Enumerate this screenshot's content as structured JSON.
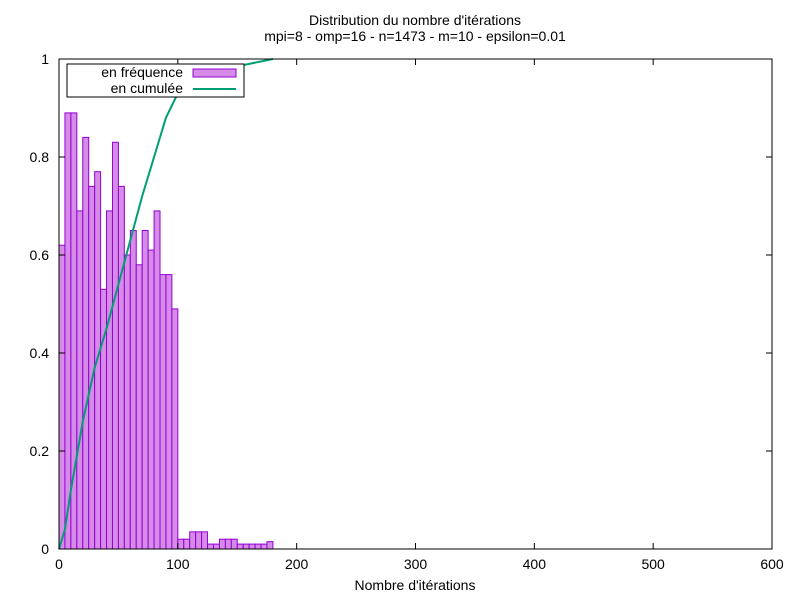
{
  "chart_data": {
    "type": "bar",
    "title": "Distribution du nombre d'itérations",
    "subtitle": "mpi=8 - omp=16 - n=1473 - m=10 - epsilon=0.01",
    "xlabel": "Nombre d'itérations",
    "ylabel": "",
    "xlim": [
      0,
      600
    ],
    "ylim": [
      0,
      1
    ],
    "xticks": [
      "0",
      "100",
      "200",
      "300",
      "400",
      "500",
      "600"
    ],
    "yticks": [
      "0",
      "0.2",
      "0.4",
      "0.6",
      "0.8",
      "1"
    ],
    "grid": false,
    "legend_position": "top-left",
    "bin_width": 5,
    "series": [
      {
        "name": "en fréquence",
        "kind": "histogram",
        "color": "#d68be9",
        "edge_color": "#9400d3",
        "bins": [
          {
            "x": 0,
            "y": 0.62
          },
          {
            "x": 5,
            "y": 0.89
          },
          {
            "x": 10,
            "y": 0.89
          },
          {
            "x": 15,
            "y": 0.69
          },
          {
            "x": 20,
            "y": 0.84
          },
          {
            "x": 25,
            "y": 0.74
          },
          {
            "x": 30,
            "y": 0.77
          },
          {
            "x": 35,
            "y": 0.53
          },
          {
            "x": 40,
            "y": 0.69
          },
          {
            "x": 45,
            "y": 0.83
          },
          {
            "x": 50,
            "y": 0.74
          },
          {
            "x": 55,
            "y": 0.6
          },
          {
            "x": 60,
            "y": 0.65
          },
          {
            "x": 65,
            "y": 0.58
          },
          {
            "x": 70,
            "y": 0.65
          },
          {
            "x": 75,
            "y": 0.61
          },
          {
            "x": 80,
            "y": 0.69
          },
          {
            "x": 85,
            "y": 0.56
          },
          {
            "x": 90,
            "y": 0.56
          },
          {
            "x": 95,
            "y": 0.49
          },
          {
            "x": 100,
            "y": 0.02
          },
          {
            "x": 105,
            "y": 0.02
          },
          {
            "x": 110,
            "y": 0.035
          },
          {
            "x": 115,
            "y": 0.035
          },
          {
            "x": 120,
            "y": 0.035
          },
          {
            "x": 125,
            "y": 0.01
          },
          {
            "x": 130,
            "y": 0.01
          },
          {
            "x": 135,
            "y": 0.02
          },
          {
            "x": 140,
            "y": 0.02
          },
          {
            "x": 145,
            "y": 0.02
          },
          {
            "x": 150,
            "y": 0.01
          },
          {
            "x": 155,
            "y": 0.01
          },
          {
            "x": 160,
            "y": 0.01
          },
          {
            "x": 165,
            "y": 0.01
          },
          {
            "x": 170,
            "y": 0.01
          },
          {
            "x": 175,
            "y": 0.015
          }
        ]
      },
      {
        "name": "en cumulée",
        "kind": "line",
        "color": "#009e73",
        "x": [
          0,
          5,
          10,
          20,
          30,
          40,
          50,
          60,
          70,
          80,
          90,
          100,
          110,
          120,
          140,
          160,
          180
        ],
        "y": [
          0.0,
          0.04,
          0.12,
          0.26,
          0.37,
          0.45,
          0.54,
          0.63,
          0.72,
          0.8,
          0.88,
          0.93,
          0.95,
          0.97,
          0.98,
          0.99,
          1.0
        ]
      }
    ]
  }
}
